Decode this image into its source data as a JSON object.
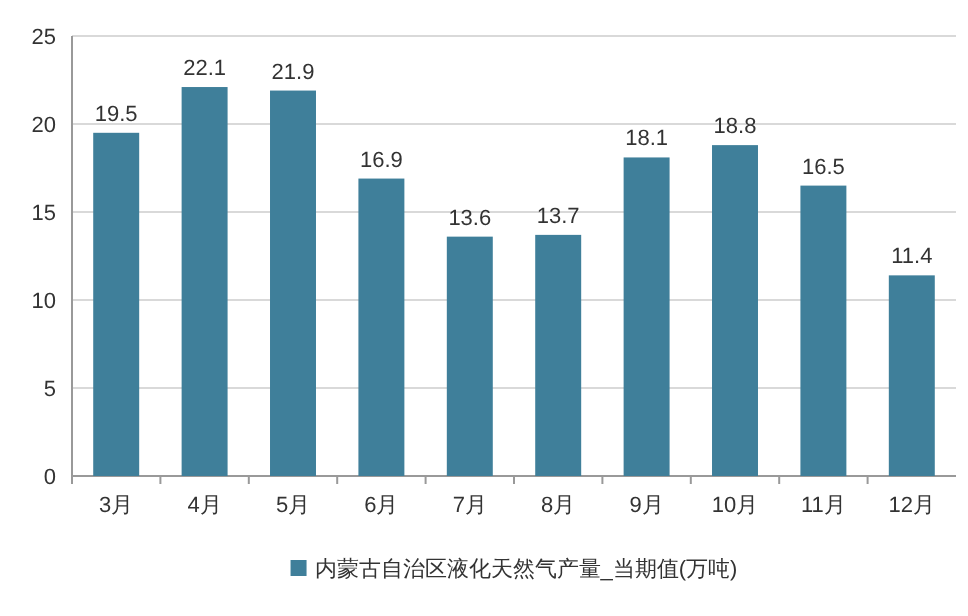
{
  "chart_data": {
    "type": "bar",
    "categories": [
      "3月",
      "4月",
      "5月",
      "6月",
      "7月",
      "8月",
      "9月",
      "10月",
      "11月",
      "12月"
    ],
    "series": [
      {
        "name": "内蒙古自治区液化天然气产量_当期值(万吨)",
        "color": "#3f7f9a",
        "values": [
          19.5,
          22.1,
          21.9,
          16.9,
          13.6,
          13.7,
          18.1,
          18.8,
          16.5,
          11.4
        ]
      }
    ],
    "ylim": [
      0,
      25
    ],
    "yticks": [
      0,
      5,
      10,
      15,
      20,
      25
    ],
    "grid": "y",
    "legend": "bottom",
    "data_labels": true
  }
}
